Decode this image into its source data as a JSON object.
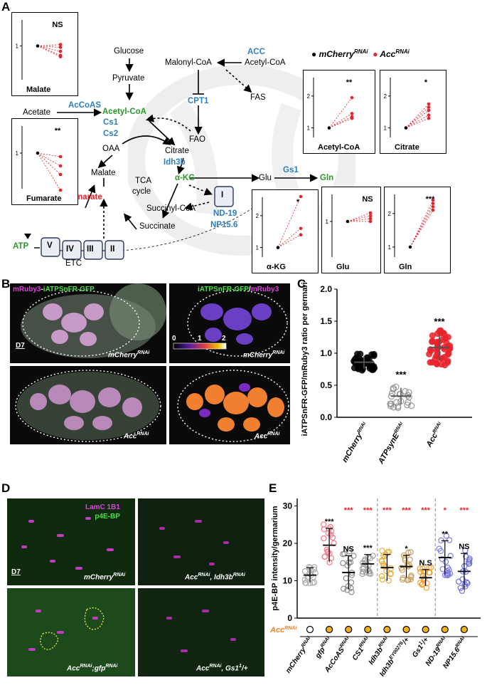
{
  "panels": {
    "A": "A",
    "B": "B",
    "C": "C",
    "D": "D",
    "E": "E"
  },
  "pathway": {
    "glucose": "Glucose",
    "pyruvate": "Pyruvate",
    "malonyl": "Malonyl-CoA",
    "acetylcoa_top": "Acetyl-CoA",
    "acc": "ACC",
    "fas": "FAS",
    "acetate": "Acetate",
    "acecoas": "AcCoAS",
    "cpt1": "CPT1",
    "acetylcoa": "Acetyl-CoA",
    "cs1": "Cs1",
    "cs2": "Cs2",
    "fao": "FAO",
    "oaa": "OAA",
    "citrate": "Citrate",
    "idh3b": "Idh3b",
    "malate": "Malate",
    "tca1": "TCA",
    "tca2": "cycle",
    "akg": "α-KG",
    "glu": "Glu",
    "gs1": "Gs1",
    "gln": "Gln",
    "fumarate": "Fumarate",
    "succcoa": "Succinyl-CoA",
    "succinate": "Succinate",
    "complexI": "I",
    "nd19": "ND-19",
    "np156": "NP15.6",
    "atp": "ATP",
    "complexes": [
      "V",
      "IV",
      "III",
      "II"
    ],
    "etc": "ETC"
  },
  "legendA": {
    "a": "mCherry",
    "a_sup": "RNAi",
    "b": "Acc",
    "b_sup": "RNAi"
  },
  "minis": [
    {
      "id": "malate",
      "label": "Malate",
      "sig": "NS",
      "ticks": [
        "1"
      ],
      "control": 1.0,
      "treated": [
        1.02,
        0.98,
        0.92,
        0.86,
        0.84
      ]
    },
    {
      "id": "fumarate",
      "label": "Fumarate",
      "sig": "**",
      "ticks": [
        "1"
      ],
      "control": 1.0,
      "treated": [
        0.95,
        0.82,
        0.7,
        0.48
      ]
    },
    {
      "id": "acetylcoa",
      "label": "Acetyl-CoA",
      "sig": "**",
      "ticks": [
        "2",
        "1"
      ],
      "control": 1.0,
      "treated": [
        1.95,
        1.45,
        1.35,
        1.3
      ]
    },
    {
      "id": "citrate",
      "label": "Citrate",
      "sig": "*",
      "ticks": [
        "2",
        "1"
      ],
      "control": 1.0,
      "treated": [
        1.75,
        1.65,
        1.55,
        1.4,
        1.3
      ]
    },
    {
      "id": "akg",
      "label": "α-KG",
      "sig": "*",
      "ticks": [
        "2",
        "1"
      ],
      "control": 1.0,
      "treated": [
        2.6,
        1.6,
        1.4
      ]
    },
    {
      "id": "glu",
      "label": "Glu",
      "sig": "NS",
      "ticks": [
        "1"
      ],
      "control": 1.0,
      "treated": [
        1.12,
        1.08,
        1.04,
        1.0
      ]
    },
    {
      "id": "gln",
      "label": "Gln",
      "sig": "***",
      "ticks": [
        "2",
        "1"
      ],
      "control": 1.0,
      "treated": [
        2.4,
        2.3,
        2.2,
        2.1
      ]
    }
  ],
  "microB": {
    "ch1a": "mRuby3",
    "ch1b": "-",
    "ch1c": "iATPSnFR-GFP",
    "ch2a": "iATPSnFR-GFP",
    "ch2b": "/",
    "ch2c": "mRuby3",
    "d7": "D7",
    "geno_top": "mCherry",
    "geno_top_sup": "RNAi",
    "geno_bot": "Acc",
    "geno_bot_sup": "RNAi",
    "cbar": [
      "0",
      "1",
      "2"
    ]
  },
  "microD": {
    "ch1": "LamC 1B1",
    "ch2": "p4E-BP",
    "d7": "D7",
    "labels": [
      {
        "t": "mCherry",
        "s": "RNAi"
      },
      {
        "t": "Acc",
        "s": "RNAi",
        "t2": ", Idh3b",
        "s2": "RNAi"
      },
      {
        "t": "Acc",
        "s": "RNAi",
        "t2": ";gfp",
        "s2": "RNAi"
      },
      {
        "t": "Acc",
        "s": "RNAi",
        "t2": ", Gs1",
        "s2": "1",
        "t3": "/+"
      }
    ]
  },
  "chart_data": [
    {
      "type": "scatter",
      "ylabel": "iATPSnFR-GFP/mRuby3 ratio per germarium",
      "ylim": [
        0,
        2.0
      ],
      "yticks": [
        "0.0",
        "0.5",
        "1.0",
        "1.5",
        "2.0"
      ],
      "categories": [
        {
          "t": "mCherry",
          "s": "RNAi"
        },
        {
          "t": "ATPsynE",
          "s": "RNAi"
        },
        {
          "t": "Acc",
          "s": "RNAi"
        }
      ],
      "means": [
        0.86,
        0.33,
        1.09
      ],
      "sd": [
        0.1,
        0.13,
        0.2
      ],
      "sig": [
        "",
        "***",
        "***"
      ],
      "colors": [
        "#000000",
        "#888888",
        "#e8222a"
      ]
    },
    {
      "type": "scatter",
      "ylabel": "p4E-BP intensity/germarium",
      "ylim": [
        0,
        32
      ],
      "yticks": [
        "0",
        "10",
        "20",
        "30"
      ],
      "categories": [
        {
          "t": "mCherry",
          "s": "RNAi"
        },
        {
          "t": "gfp",
          "s": "RNAi"
        },
        {
          "t": "AcCoAS",
          "s": "RNAi"
        },
        {
          "t": "CS1",
          "s": "RNAi"
        },
        {
          "t": "Idh3b",
          "s": "RNAi"
        },
        {
          "t": "Idh3b",
          "s": "EY00276",
          "t2": "/+"
        },
        {
          "t": "Gs1",
          "s": "1",
          "t2": "/+"
        },
        {
          "t": "ND-19",
          "s": "RNAi"
        },
        {
          "t": "NP15.6",
          "s": "RNAi"
        }
      ],
      "means": [
        11.5,
        19.5,
        12.2,
        14.5,
        13.5,
        13.8,
        10.8,
        16.2,
        12.5
      ],
      "sd": [
        2.0,
        4.5,
        4.5,
        2.5,
        3.5,
        3.0,
        2.2,
        4.5,
        4.8
      ],
      "sig_top": [
        "",
        "***",
        "NS",
        "***",
        "",
        "*",
        "N.S",
        "**",
        "NS"
      ],
      "sig_red": [
        "",
        "",
        "***",
        "***",
        "***",
        "***",
        "***",
        "*",
        "***"
      ],
      "colors": [
        "#b0b0b0",
        "#f07b8a",
        "#8c8c8c",
        "#a0a0a0",
        "#e3b040",
        "#c9a060",
        "#f0a030",
        "#7f7fe0",
        "#6e6ee0"
      ],
      "acc_label": "Acc",
      "acc_sup": "RNAi",
      "acc_marks": [
        false,
        true,
        true,
        true,
        true,
        true,
        true,
        true,
        true
      ]
    }
  ]
}
